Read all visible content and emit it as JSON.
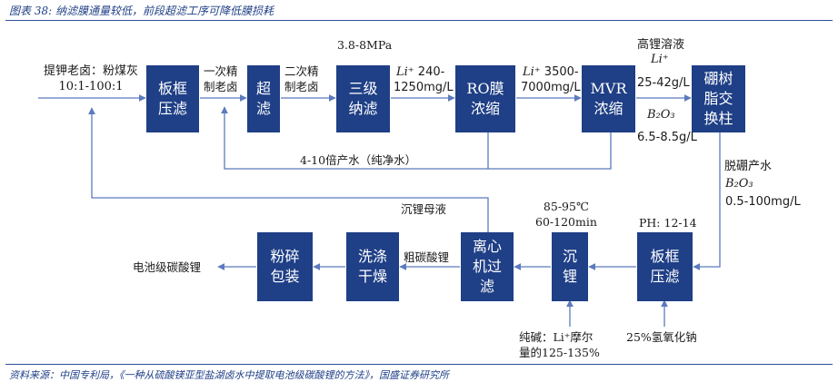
{
  "header": {
    "title": "图表 38: 纳滤膜通量较低，前段超滤工序可降低膜损耗"
  },
  "source": "资料来源：中国专利局，《一种从硫酸镁亚型盐湖卤水中提取电池级碳酸锂的方法》，国盛证券研究所",
  "colors": {
    "box_fill": "#1f3f86",
    "line": "#5b7bbd"
  },
  "boxes": {
    "plate1": "板框\n压滤",
    "uf": "超\n滤",
    "nf": "三级\n纳滤",
    "ro": "RO膜\n浓缩",
    "mvr": "MVR\n浓缩",
    "boron": "硼树\n脂交\n换柱",
    "plate2": "板框\n压滤",
    "precip": "沉\n锂",
    "centri": "离心\n机过\n滤",
    "wash": "洗涤\n干燥",
    "pack": "粉碎\n包装"
  },
  "labels": {
    "input": "提钾老卤：粉煤灰\n10:1-100:1",
    "brine1": "一次精\n制老卤",
    "brine2": "二次精\n制老卤",
    "pressure": "3.8-8MPa",
    "li_nf_sym": "Li⁺",
    "li_nf_a": "240-",
    "li_nf_b": "1250mg/L",
    "li_ro_sym": "Li⁺",
    "li_ro_a": "3500-",
    "li_ro_b": "7000mg/L",
    "high_li": "高锂溶液",
    "li_mvr_sym": "Li⁺",
    "li_mvr": "25-42g/L",
    "b2o3_mvr_sym": "B₂O₃",
    "b2o3_mvr": "6.5-8.5g/L",
    "water": "4-10倍产水（纯净水）",
    "deboron": "脱硼产水",
    "b2o3_out_sym": "B₂O₃",
    "b2o3_out": "0.5-100mg/L",
    "ph": "PH: 12-14",
    "temp": "85-95℃\n60-120min",
    "mother": "沉锂母液",
    "crude": "粗碳酸锂",
    "product": "电池级碳酸锂",
    "soda": "纯碱：Li⁺摩尔\n量的125-135%",
    "naoh": "25%氢氧化钠"
  }
}
